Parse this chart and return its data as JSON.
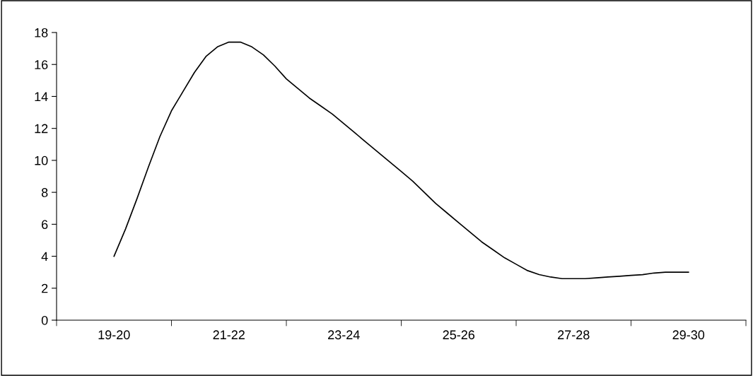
{
  "chart_data": {
    "type": "line",
    "color": "#000000",
    "categories": [
      "19-20",
      null,
      null,
      null,
      null,
      null,
      null,
      null,
      null,
      null,
      "21-22",
      null,
      null,
      null,
      null,
      null,
      null,
      null,
      null,
      null,
      "23-24",
      null,
      null,
      null,
      null,
      null,
      null,
      null,
      null,
      null,
      "25-26",
      null,
      null,
      null,
      null,
      null,
      null,
      null,
      null,
      null,
      "27-28",
      null,
      null,
      null,
      null,
      null,
      null,
      null,
      null,
      null,
      "29-30"
    ],
    "values": [
      4.0,
      5.7,
      7.6,
      9.6,
      11.5,
      13.1,
      14.3,
      15.5,
      16.5,
      17.1,
      17.4,
      17.4,
      17.1,
      16.6,
      15.9,
      15.1,
      14.5,
      13.9,
      13.4,
      12.9,
      12.3,
      11.7,
      11.1,
      10.5,
      9.9,
      9.3,
      8.7,
      8.0,
      7.3,
      6.7,
      6.1,
      5.5,
      4.9,
      4.4,
      3.9,
      3.5,
      3.1,
      2.85,
      2.7,
      2.6,
      2.6,
      2.6,
      2.65,
      2.7,
      2.75,
      2.8,
      2.85,
      2.95,
      3.0,
      3.0,
      3.0
    ],
    "ylim": [
      0,
      18
    ],
    "yticks": [
      0,
      2,
      4,
      6,
      8,
      10,
      12,
      14,
      16,
      18
    ],
    "grid": false,
    "legend": false,
    "marker": "none",
    "line_style": "solid"
  }
}
